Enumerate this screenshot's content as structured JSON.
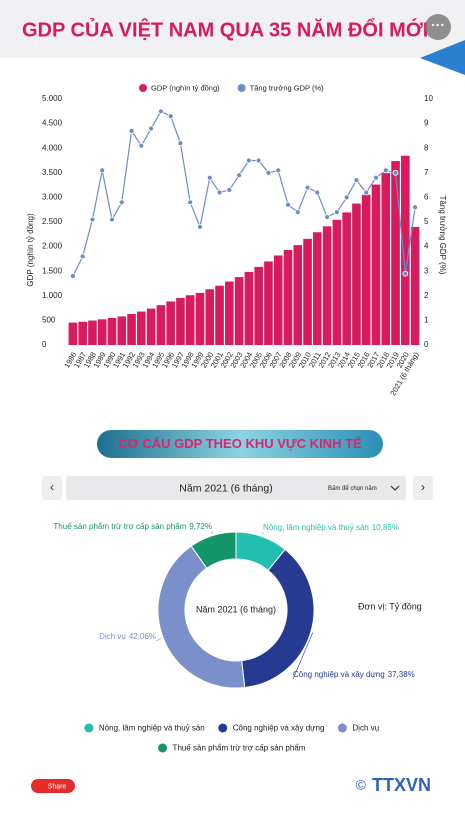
{
  "header": {
    "title": "GDP CỦA VIỆT NAM QUA 35 NĂM ĐỔI MỚI"
  },
  "chart_data": [
    {
      "type": "bar",
      "categories": [
        "1986",
        "1987",
        "1988",
        "1989",
        "1990",
        "1991",
        "1992",
        "1993",
        "1994",
        "1995",
        "1996",
        "1997",
        "1998",
        "1999",
        "2000",
        "2001",
        "2002",
        "2003",
        "2004",
        "2005",
        "2006",
        "2007",
        "2008",
        "2009",
        "2010",
        "2011",
        "2012",
        "2013",
        "2014",
        "2015",
        "2016",
        "2017",
        "2018",
        "2019",
        "2020",
        "2021 (6 tháng)"
      ],
      "series": [
        {
          "name": "GDP (nghìn tỷ đồng)",
          "type": "bar",
          "color": "#d81b5e",
          "values": [
            455,
            472,
            497,
            522,
            549,
            581,
            630,
            680,
            740,
            810,
            885,
            957,
            1012,
            1060,
            1133,
            1205,
            1290,
            1380,
            1486,
            1588,
            1699,
            1820,
            1930,
            2030,
            2158,
            2292,
            2412,
            2543,
            2695,
            2875,
            3054,
            3262,
            3494,
            3738,
            3847,
            2400
          ]
        },
        {
          "name": "Tăng trưởng GDP (%)",
          "type": "line",
          "axis": "y2",
          "color": "#6d8cc7",
          "values": [
            2.8,
            3.6,
            5.1,
            7.1,
            5.1,
            5.8,
            8.7,
            8.1,
            8.8,
            9.5,
            9.3,
            8.2,
            5.8,
            4.8,
            6.8,
            6.2,
            6.3,
            6.9,
            7.5,
            7.5,
            7.0,
            7.1,
            5.7,
            5.4,
            6.4,
            6.2,
            5.2,
            5.4,
            6.0,
            6.7,
            6.2,
            6.8,
            7.1,
            7.0,
            2.9,
            5.6
          ]
        }
      ],
      "ylim": [
        0,
        5000
      ],
      "yticks": [
        0,
        500,
        {
          "value": 1000,
          "label": "1.000"
        },
        {
          "value": 1500,
          "label": "1.500"
        },
        {
          "value": 2000,
          "label": "2.000"
        },
        {
          "value": 2500,
          "label": "2.500"
        },
        {
          "value": 3000,
          "label": "3.000"
        },
        {
          "value": 3500,
          "label": "3.500"
        },
        {
          "value": 4000,
          "label": "4.000"
        },
        {
          "value": 4500,
          "label": "4.500"
        },
        {
          "value": 5000,
          "label": "5.000"
        }
      ],
      "y2lim": [
        0,
        10
      ],
      "y2ticks": [
        0,
        1,
        2,
        3,
        4,
        5,
        6,
        7,
        8,
        9,
        10
      ]
    },
    {
      "type": "donut",
      "title": "CƠ CẤU GDP THEO KHU VỰC KINH TẾ",
      "selected": "Năm 2021 (6 tháng)",
      "selector_hint": "Bấm để chọn năm",
      "unit_note": "Đơn vị: Tỷ đồng",
      "categories": [
        "Nông, lâm nghiệp và thuỷ sản",
        "Công nghiệp và xây dựng",
        "Dịch vụ",
        "Thuế sản phẩm trừ trợ cấp sản phẩm"
      ],
      "values": [
        10.85,
        37.38,
        42.06,
        9.72
      ],
      "value_labels": [
        "10,85%",
        "37,38%",
        "42,06%",
        "9,72%"
      ],
      "colors": [
        "#22bfb0",
        "#263a92",
        "#7b8fcb",
        "#14956a"
      ]
    }
  ],
  "footer": {
    "share": "Share",
    "logo": "TTXVN"
  }
}
